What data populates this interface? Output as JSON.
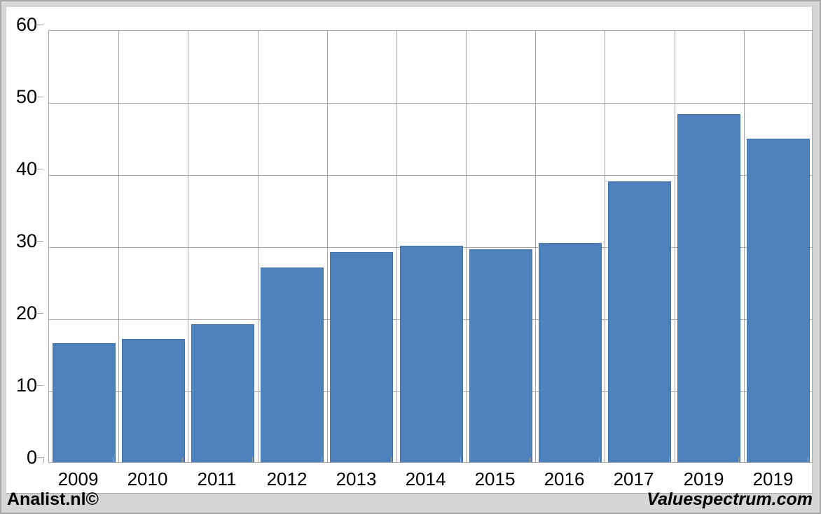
{
  "chart_data": {
    "type": "bar",
    "title": "",
    "xlabel": "",
    "ylabel": "",
    "categories": [
      "2009",
      "2010",
      "2011",
      "2012",
      "2013",
      "2014",
      "2015",
      "2016",
      "2017",
      "2019",
      "2019"
    ],
    "values": [
      16.5,
      17.1,
      19.1,
      27.0,
      29.1,
      30.0,
      29.5,
      30.4,
      38.9,
      48.3,
      44.9
    ],
    "ylim": [
      0,
      60
    ],
    "yticks": [
      0,
      10,
      20,
      30,
      40,
      50,
      60
    ],
    "grid": true,
    "legend": "none",
    "bar_color": "#4f81bd",
    "bar_border_color": "#4274a5",
    "gridline_color": "#a6a6a6",
    "plot_background": "#ffffff",
    "frame_background": "#d6d6d6"
  },
  "footer": {
    "left_text": "Analist.nl©",
    "right_text": "Valuespectrum.com"
  }
}
